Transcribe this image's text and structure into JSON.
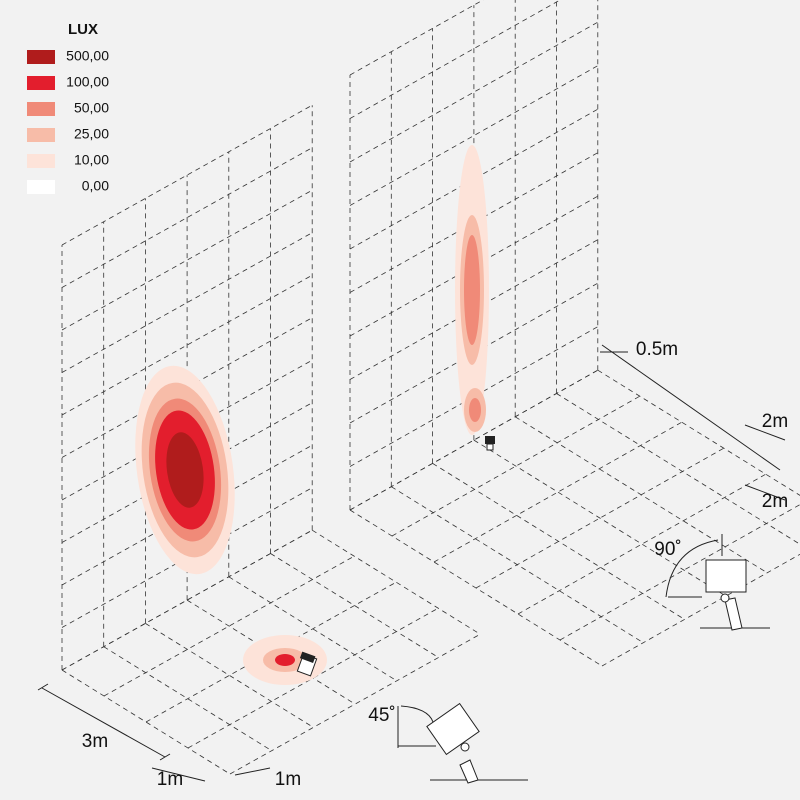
{
  "legend": {
    "title": "LUX",
    "items": [
      {
        "label": "500,00",
        "color": "#b01c1c"
      },
      {
        "label": "100,00",
        "color": "#e31e2d"
      },
      {
        "label": "50,00",
        "color": "#f08a78"
      },
      {
        "label": "25,00",
        "color": "#f7bca8"
      },
      {
        "label": "10,00",
        "color": "#fde3d9"
      },
      {
        "label": "0,00",
        "color": "#ffffff"
      }
    ]
  },
  "dimensions": {
    "left_height": "3m",
    "left_width": "1m",
    "left_depth": "1m",
    "right_offset": "0.5m",
    "right_depth_1": "2m",
    "right_depth_2": "2m",
    "angle_left": "45˚",
    "angle_right": "90˚"
  }
}
